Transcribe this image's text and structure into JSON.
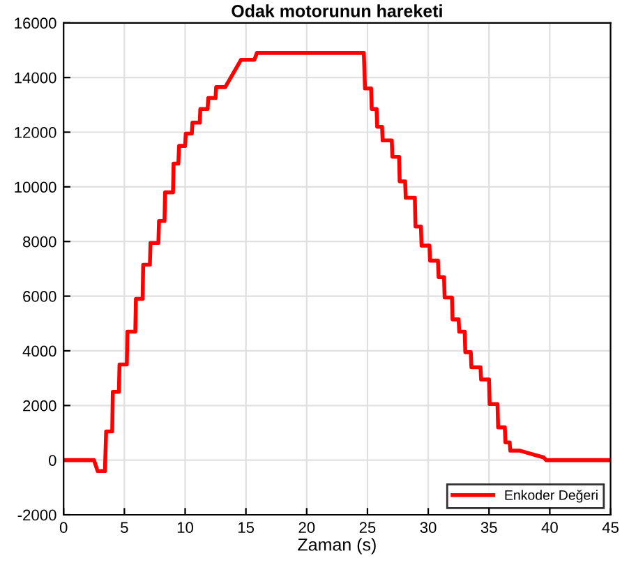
{
  "chart_data": {
    "type": "line",
    "title": "Odak motorunun hareketi",
    "xlabel": "Zaman (s)",
    "x": [
      0,
      2.5,
      2.8,
      3.4,
      3.5,
      4.0,
      4.05,
      4.55,
      4.6,
      5.2,
      5.25,
      5.9,
      5.95,
      6.5,
      6.55,
      7.1,
      7.15,
      7.8,
      7.85,
      8.3,
      8.35,
      9.0,
      9.05,
      9.44,
      9.5,
      10.0,
      10.05,
      10.55,
      10.6,
      11.2,
      11.25,
      11.85,
      11.9,
      12.5,
      12.55,
      13.3,
      14.6,
      15.7,
      15.9,
      24.7,
      24.8,
      25.3,
      25.35,
      25.75,
      25.8,
      26.2,
      26.25,
      27.0,
      27.05,
      27.6,
      27.65,
      28.1,
      28.15,
      28.9,
      28.95,
      29.4,
      29.45,
      30.1,
      30.15,
      30.8,
      30.85,
      31.3,
      31.35,
      31.95,
      32.0,
      32.5,
      32.55,
      33.0,
      33.05,
      33.5,
      33.55,
      34.3,
      34.35,
      35.0,
      35.05,
      35.7,
      35.75,
      36.3,
      36.35,
      36.7,
      36.75,
      37.5,
      39.5,
      39.7,
      45
    ],
    "series": [
      {
        "name": "Enkoder Değeri",
        "color": "#ff0000",
        "values": [
          0,
          0,
          -400,
          -400,
          1050,
          1050,
          2500,
          2500,
          3500,
          3500,
          4700,
          4700,
          5900,
          5900,
          7150,
          7150,
          7950,
          7950,
          8750,
          8750,
          9800,
          9800,
          10850,
          10850,
          11500,
          11500,
          11950,
          11950,
          12350,
          12350,
          12850,
          12850,
          13250,
          13250,
          13650,
          13650,
          14650,
          14650,
          14900,
          14900,
          13600,
          13600,
          12850,
          12850,
          12200,
          12200,
          11700,
          11700,
          11100,
          11100,
          10200,
          10200,
          9600,
          9600,
          8550,
          8550,
          7850,
          7850,
          7300,
          7300,
          6700,
          6700,
          5950,
          5950,
          5150,
          5150,
          4700,
          4700,
          3950,
          3950,
          3400,
          3400,
          2950,
          2950,
          2050,
          2050,
          1200,
          1200,
          650,
          650,
          350,
          350,
          100,
          0,
          0
        ]
      }
    ],
    "xlim": [
      0,
      45
    ],
    "xticks": [
      0,
      5,
      10,
      15,
      20,
      25,
      30,
      35,
      40,
      45
    ],
    "ylim": [
      -2000,
      16000
    ],
    "yticks": [
      -2000,
      0,
      2000,
      4000,
      6000,
      8000,
      10000,
      12000,
      14000,
      16000
    ],
    "grid": true,
    "legend": "bottom right",
    "line_style": "solid",
    "marker": "none"
  }
}
